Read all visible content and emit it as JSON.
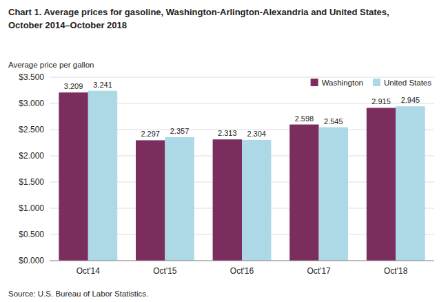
{
  "chart_data": {
    "type": "bar",
    "title": "Chart 1. Average prices for gasoline, Washington-Arlington-Alexandria and United States,",
    "subtitle": "October 2014–October 2018",
    "y_label": "Average price per gallon",
    "source": "Source: U.S. Bureau of Labor Statistics.",
    "categories": [
      "Oct'14",
      "Oct'15",
      "Oct'16",
      "Oct'17",
      "Oct'18"
    ],
    "series": [
      {
        "name": "Washington",
        "color": "#7B2D5E",
        "values": [
          3.209,
          2.297,
          2.313,
          2.598,
          2.915
        ]
      },
      {
        "name": "United States",
        "color": "#ADD8E6",
        "values": [
          3.241,
          2.357,
          2.304,
          2.545,
          2.945
        ]
      }
    ],
    "ylim": [
      0,
      3.5
    ],
    "yticks": [
      {
        "value": 0.0,
        "label": "$0.000"
      },
      {
        "value": 0.5,
        "label": "$0.500"
      },
      {
        "value": 1.0,
        "label": "$1.000"
      },
      {
        "value": 1.5,
        "label": "$1.500"
      },
      {
        "value": 2.0,
        "label": "$2.000"
      },
      {
        "value": 2.5,
        "label": "$2.500"
      },
      {
        "value": 3.0,
        "label": "$3.000"
      },
      {
        "value": 3.5,
        "label": "$3.500"
      }
    ],
    "grid": true,
    "legend": "upper right",
    "data_labels": true
  }
}
